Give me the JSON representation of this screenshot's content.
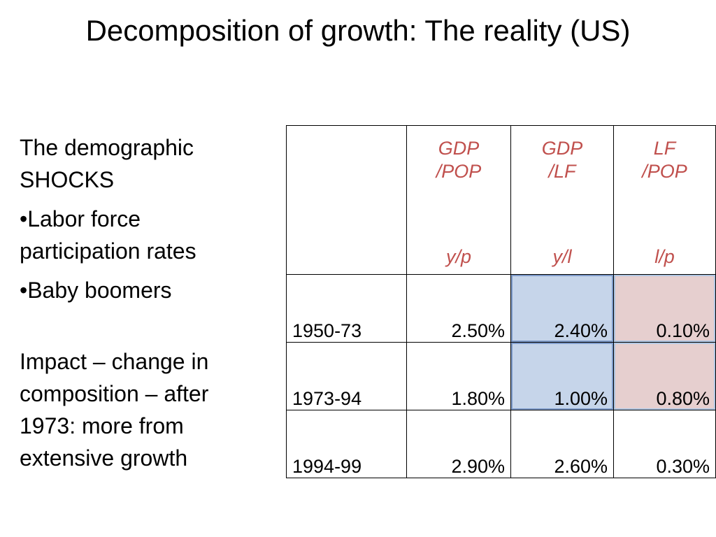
{
  "title": "Decomposition of growth: The reality (US)",
  "left_text": {
    "heading_line1": "The demographic",
    "heading_line2": "SHOCKS",
    "bullet1_line1": "•Labor force",
    "bullet1_line2": "participation rates",
    "bullet2": "•Baby boomers",
    "impact_line1": "Impact – change in",
    "impact_line2": "composition – after",
    "impact_line3": "1973: more from",
    "impact_line4": "extensive growth"
  },
  "table": {
    "headers": [
      {
        "top_line1": "GDP",
        "top_line2": "/POP",
        "bottom": "y/p"
      },
      {
        "top_line1": "GDP",
        "top_line2": "/LF",
        "bottom": "y/l"
      },
      {
        "top_line1": "LF",
        "top_line2": "/POP",
        "bottom": "l/p"
      }
    ],
    "rows": [
      {
        "period": "1950-73",
        "gdp_pop": "2.50%",
        "gdp_lf": "2.40%",
        "lf_pop": "0.10%"
      },
      {
        "period": "1973-94",
        "gdp_pop": "1.80%",
        "gdp_lf": "1.00%",
        "lf_pop": "0.80%"
      },
      {
        "period": "1994-99",
        "gdp_pop": "2.90%",
        "gdp_lf": "2.60%",
        "lf_pop": "0.30%"
      }
    ],
    "header_color": "#c0504d",
    "highlight_blue": "#c6d5ea",
    "highlight_red": "#e6cfcf"
  }
}
